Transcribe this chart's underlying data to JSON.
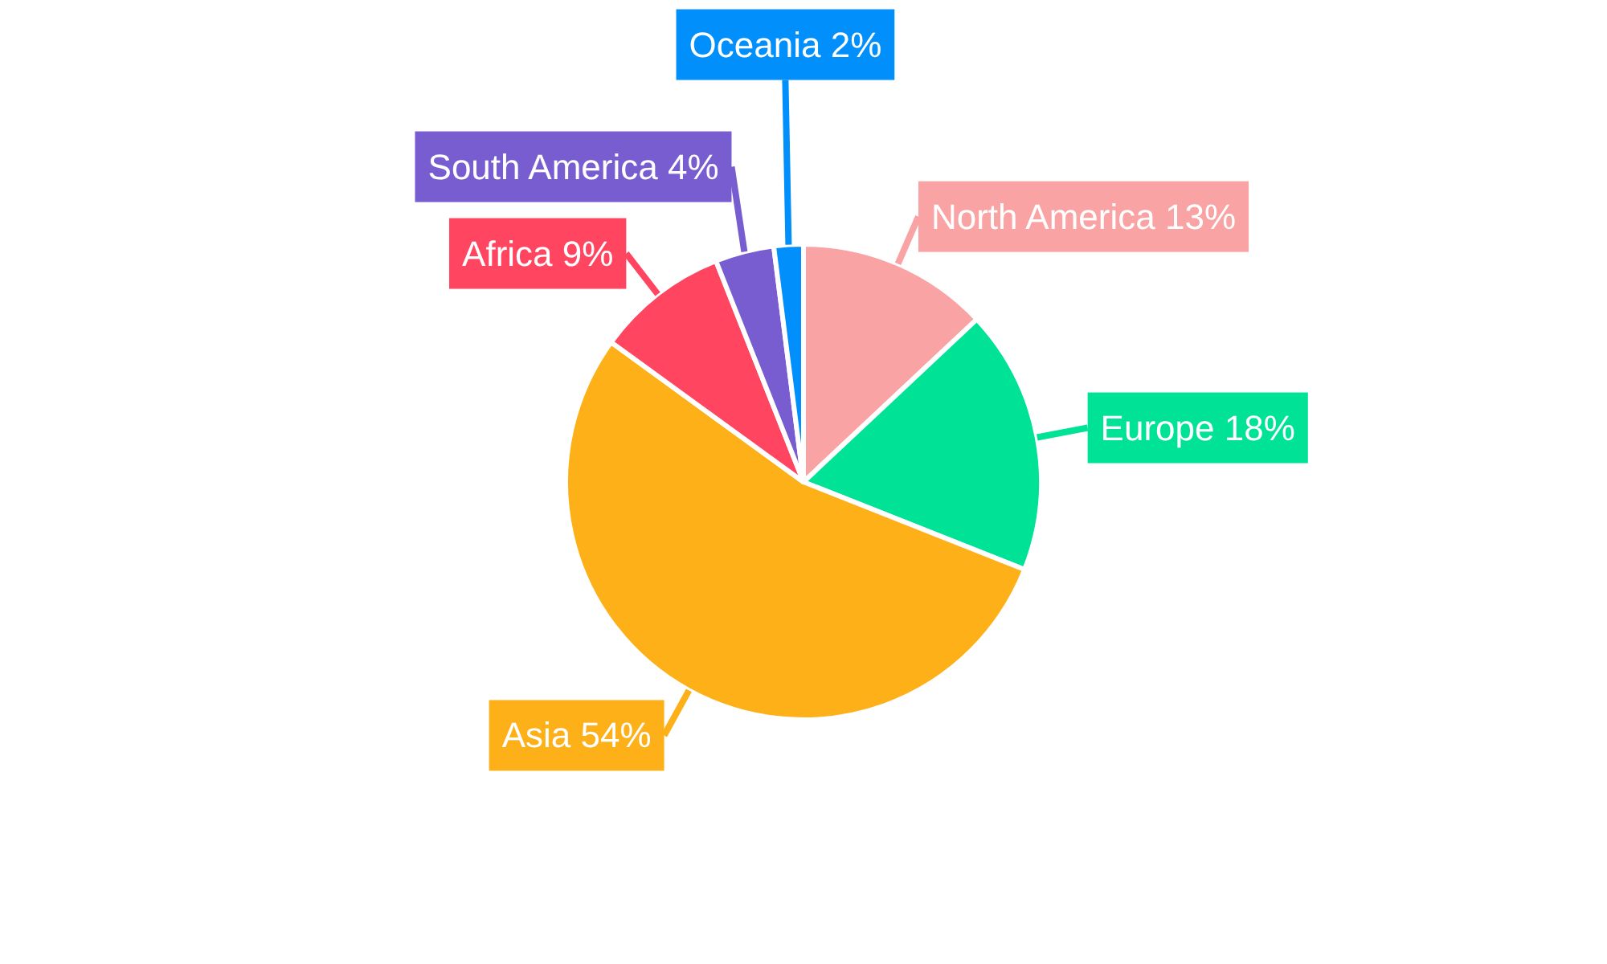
{
  "chart_data": {
    "type": "pie",
    "categories": [
      "North America",
      "Europe",
      "Asia",
      "Africa",
      "South America",
      "Oceania"
    ],
    "values": [
      13,
      18,
      54,
      9,
      4,
      2
    ],
    "value_labels": [
      "13%",
      "18%",
      "54%",
      "9%",
      "4%",
      "2%"
    ],
    "colors": [
      "#f9a3a4",
      "#00e396",
      "#feb019",
      "#ff4560",
      "#775dd0",
      "#008ffb"
    ]
  }
}
